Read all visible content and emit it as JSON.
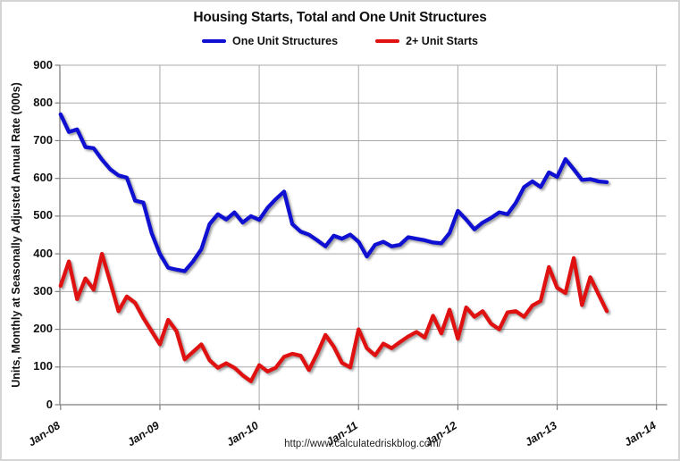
{
  "chart_data": {
    "type": "line",
    "title": "Housing Starts, Total and One Unit Structures",
    "ylabel": "Units, Monthly at Seasonally Adjusted Annual Rate (000s)",
    "xlabel": "",
    "source_url": "http://www.calculatedriskblog.com/",
    "legend_position": "top",
    "grid": true,
    "ylim": [
      0,
      900
    ],
    "y_tick_step": 100,
    "y_tick_values": [
      900,
      800,
      700,
      600,
      500,
      400,
      300,
      200,
      100,
      0
    ],
    "x_tick_labels": [
      "Jan-08",
      "Jan-09",
      "Jan-10",
      "Jan-11",
      "Jan-12",
      "Jan-13",
      "Jan-14"
    ],
    "x_start": "Jan-08",
    "x_months_per_tick": 12,
    "axis_color": "#7f7f7f",
    "grid_color": "#a9a9a9",
    "series": [
      {
        "name": "One Unit Structures",
        "color": "#1010d2",
        "values": [
          770,
          723,
          730,
          683,
          680,
          650,
          624,
          608,
          602,
          541,
          536,
          455,
          400,
          363,
          358,
          354,
          380,
          412,
          479,
          505,
          491,
          510,
          483,
          500,
          490,
          522,
          545,
          565,
          479,
          459,
          451,
          436,
          420,
          448,
          440,
          451,
          432,
          393,
          424,
          432,
          420,
          424,
          444,
          440,
          436,
          430,
          428,
          455,
          514,
          491,
          465,
          483,
          495,
          510,
          505,
          535,
          577,
          592,
          577,
          616,
          604,
          651,
          624,
          596,
          598,
          592,
          590
        ]
      },
      {
        "name": "2+ Unit Starts",
        "color": "#e01111",
        "values": [
          315,
          380,
          280,
          335,
          305,
          400,
          325,
          248,
          287,
          270,
          230,
          195,
          160,
          225,
          195,
          120,
          140,
          160,
          118,
          98,
          110,
          98,
          78,
          62,
          105,
          88,
          98,
          127,
          135,
          130,
          92,
          135,
          185,
          154,
          111,
          99,
          200,
          150,
          131,
          162,
          150,
          166,
          181,
          193,
          178,
          236,
          189,
          252,
          175,
          258,
          233,
          248,
          215,
          200,
          245,
          248,
          233,
          263,
          275,
          365,
          310,
          296,
          389,
          264,
          338,
          292,
          248
        ]
      }
    ]
  }
}
